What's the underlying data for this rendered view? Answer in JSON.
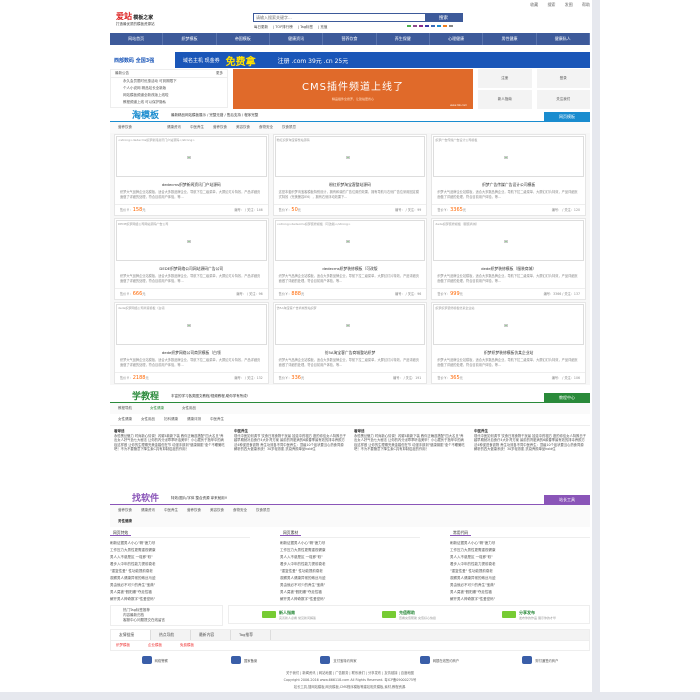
{
  "top_links": [
    "收藏",
    "搜索",
    "发图",
    "帮助"
  ],
  "logo": {
    "name": "爱站",
    "sub": "模板之家",
    "slogan": "打造最优质的模板资源站"
  },
  "search": {
    "placeholder": "请输入搜索关键字...",
    "button": "搜索"
  },
  "hot_links": [
    "每日更新",
    "TOP排行榜",
    "Tag标签",
    "充值"
  ],
  "swatches": [
    "#4caf50",
    "#8b4a8b",
    "#8a2a8a",
    "#3a3aa8",
    "#3a6ab8",
    "#1a8ccf",
    "#f08020",
    "#888888"
  ],
  "nav": [
    "网站首页",
    "织梦模板",
    "帝国模板",
    "健康资讯",
    "营养饮食",
    "养生保健",
    "心理健康",
    "男性健康",
    "健康私人"
  ],
  "banner": {
    "brand": "西部数码 全国3强",
    "text": "域名主机 现金券",
    "big": "免费拿",
    "price": "注册 .com 39元  .cn 25元"
  },
  "news": {
    "title": "最新公告",
    "more": "更多",
    "items": [
      "永久会员限时优惠活动 可到期限下",
      "个人小说网 精品站长全新版",
      "网站模板频道全新改版上线啦",
      "教程频道上线 可以保护隐私"
    ]
  },
  "promo": {
    "title": "CMS插件频道上线了",
    "sub": "精品插件全搜罗，让建站更省心",
    "tag": "NEW",
    "url": "www.mb.com"
  },
  "quick_buttons": [
    "注册",
    "登录",
    "新人指南",
    "关注我们"
  ],
  "taomuban": {
    "title": "淘模板",
    "desc": "最新精品网站模板展示 / 完整无错 / 售后支持 / 程序完整",
    "more": "网页模板",
    "tabs": [
      "营养饮食",
      "健康资讯",
      "中医养生",
      "营养饮食",
      "美容饮食",
      "食物安全",
      "饮食禁忌"
    ],
    "cards": [
      {
        "img": "<strong>dedecms织梦新闻资讯门户站源码</strong>",
        "title": "dedecms织梦新闻资讯门户站源码",
        "desc": "织梦大气品牌企业站模板，适合大多数品牌企业，导航下拉二级菜单，大屏幻灯片特效，产品详细页面做了详细的处理，符合目前用户体验，等...",
        "price": "158",
        "stats": "编号：  / 关注：146"
      },
      {
        "img": "粉红织梦淘宝客整站源码",
        "title": "粉红织梦淘宝客整站源码",
        "desc": "这是本套织梦淘宝客模板特别设计，拥有和谐的广告位置的效果，拥有导航与右侧广告位采用固定模式特效（完美兼容IE6），拥有右侧浮动效果下...",
        "price": "50",
        "stats": "编号：  / 关注：99"
      },
      {
        "img": "织梦广告传媒广告设计公司模板",
        "title": "织梦广告传媒广告设计公司模板",
        "desc": "织梦大气品牌企业站模板，适合大多数品牌企业，导航下拉二级菜单，大屏幻灯片特效，产品详细页面做了详细的处理，符合目前用户体验，等...",
        "price": "3365",
        "stats": "编号：  / 关注：120"
      },
      {
        "img": "DEDE织梦网络公司网站源码广告公司",
        "title": "DEDE织梦网络公司网站源码广告公司",
        "desc": "织梦大气品牌企业站模板，适合大多数品牌企业，导航下拉二级菜单，大屏幻灯片特效，产品详细页面做了详细的处理，符合目前用户体验，等...",
        "price": "666",
        "stats": "编号：  / 关注：96"
      },
      {
        "img": "<strong>dedecms织梦装修模板（可改版</strong>",
        "title": "dedecms织梦装修模板（可改版",
        "desc": "织梦大气品牌企业站模板，适合大多数品牌企业，导航下拉二级菜单，大屏幻灯片特效，产品详细页面做了详细的处理，符合目前用户体验，等...",
        "price": "888",
        "stats": "编号：  / 关注：96"
      },
      {
        "img": "dede织梦装修模板（服装商城）",
        "title": "dede织梦装修模板（服装商城）",
        "desc": "织梦大气品牌企业站模板，适合大多数品牌企业，导航下拉二级菜单，大屏幻灯片特效，产品详细页面做了详细的处理，符合目前用户体验，等...",
        "price": "999",
        "stats": "编号：3366 / 关注：137"
      },
      {
        "img": "dede织梦网络公司商贸模板（白领",
        "title": "dede织梦网络公司商贸模板（白领",
        "desc": "织梦大气品牌企业站模板，适合大多数品牌企业，导航下拉二级菜单，大屏幻灯片特效，产品详细页面做了详细的处理，符合目前用户体验，等...",
        "price": "2188",
        "stats": "编号：  / 关注：132"
      },
      {
        "img": "仿5A淘宝客广告商城整站织梦",
        "title": "仿5A淘宝客广告商城整站织梦",
        "desc": "织梦大气品牌企业站模板，适合大多数品牌企业，导航下拉二级菜单，大屏幻灯片特效，产品详细页面做了详细的处理，符合目前用户体验，等...",
        "price": "336",
        "stats": "编号：  / 关注：191"
      },
      {
        "img": "织梦织梦装修模板仿某企业站",
        "title": "织梦织梦装修模板仿某企业站",
        "desc": "织梦大气品牌企业站模板，适合大多数品牌企业，导航下拉二级菜单，大屏幻灯片特效，产品详细页面做了详细的处理，符合目前用户体验，等...",
        "price": "365",
        "stats": "编号：  / 关注：106"
      }
    ],
    "price_label": "售价￥：",
    "price_unit": "元"
  },
  "xuejiaocheng": {
    "title": "学教程",
    "desc": "丰富的学习各类图文教程/视频教程,助你学有所成!",
    "more": "教程中心",
    "tabs1": [
      "教程导航",
      "女性健康",
      "女性用品"
    ],
    "tabs2": [
      "女性健康",
      "女性用品",
      "妇科健康",
      "健康评测",
      "中医养生"
    ],
    "cols": [
      {
        "h": "看球迷",
        "p": "永恒黑丝魅力 时尚新心情调！闪耀4款新下装 教你正确选搭配\"四大名旦\"养出女人好气色七大秘法 让你的内分泌乖乖听话美甲！小心藏伏于指甲中的病症这样做 让你的生理期完美金婚但在节 动漫手部到\"健康钢肌\"涨个不睡懒吃吧！不为不要随意下降生素C具有抑制癌症的作用！"
      },
      {
        "h": "中医养生",
        "p": "现代中医如何调节 饮食日常食物干扰最 娃娃中药粗方 瘦的你佳女人特殊日子 越早期就补血食疗4大补肾方案 最前的肾脏病的6款春季最有效的排毒养颜方法4种促进食欲物 养生功效各不同中医养生：顶级10个症状要当心药食同源解析的四大健康系统！30岁轻熟肌 抗衰养颜单品hold住"
      },
      {
        "h": "看球迷",
        "p": "永恒黑丝魅力 时尚新心情调！闪耀4款新下装 教你正确选搭配\"四大名旦\"养出女人好气色七大秘法 让你的内分泌乖乖听话美甲！小心藏伏于指甲中的病症这样做 让你的生理期完美金婚但在节 动漫手部到\"健康钢肌\"涨个不睡懒吃吧！不为不要随意下降生素C具有抑制癌症的作用！"
      },
      {
        "h": "中医养生",
        "p": "现代中医如何调节 饮食日常食物干扰最 娃娃中药粗方 瘦的你佳女人特殊日子 越早期就补血食疗4大补肾方案 最前的肾脏病的6款春季最有效的排毒养颜方法4种促进食欲物 养生功效各不同中医养生：顶级10个症状要当心药食同源解析的四大健康系统！30岁轻熟肌 抗衰养颜单品hold住"
      }
    ]
  },
  "zhaoruanjian": {
    "title": "找软件",
    "desc": "特效/图片/字体 整合资源 拿来就用!!",
    "more": "站长工具",
    "tabs": [
      "营养饮食",
      "健康资讯",
      "中医养生",
      "营养饮食",
      "美容饮食",
      "食物安全",
      "饮食禁忌"
    ],
    "sub": "男性健康",
    "cols": [
      {
        "h": "网页特效",
        "items": [
          "刷新证据男人小心\"精\"疲力尽",
          "工作压力大男性更需重视健康",
          "男人入不惑是区 一碰即\"软\"",
          "看步入中年的性能力提前衰老",
          "\"重复性爱\" 性功能提前衰老",
          "观察男人健康异常的蛛丝马迹",
          "男由就必不可少的养生\"宝典\"",
          "男人莫被\"假阳痿\"夺走性福",
          "解开男人神奇数字\"性爱密码\""
        ]
      },
      {
        "h": "网页素材",
        "items": [
          "刷新证据男人小心\"精\"疲力尽",
          "工作压力大男性更需重视健康",
          "男人入不惑是区 一碰即\"软\"",
          "看步入中年的性能力提前衰老",
          "\"重复性爱\" 性功能提前衰老",
          "观察男人健康异常的蛛丝马迹",
          "男由就必不可少的养生\"宝典\"",
          "男人莫被\"假阳痿\"夺走性福",
          "解开男人神奇数字\"性爱密码\""
        ]
      },
      {
        "h": "常用代码",
        "items": [
          "刷新证据男人小心\"精\"疲力尽",
          "工作压力大男性更需重视健康",
          "男人入不惑是区 一碰即\"软\"",
          "看步入中年的性能力提前衰老",
          "\"重复性爱\" 性功能提前衰老",
          "观察男人健康异常的蛛丝马迹",
          "男由就必不可少的养生\"宝典\"",
          "男人莫被\"假阳痿\"夺走性福",
          "解开男人神奇数字\"性爱密码\""
        ]
      }
    ]
  },
  "info": {
    "left": [
      "热门Tag标签推荐",
      "内容最新归档",
      "客服中心问题提交在线留言"
    ],
    "features": [
      {
        "t": "新人指南",
        "s": "完善新人必看 常见新问解答"
      },
      {
        "t": "充值帮助",
        "s": "查看充值帮助 充值好心快捷"
      },
      {
        "t": "分享发布",
        "s": "发布你的作品 展示你的才华"
      }
    ]
  },
  "friend_tabs": [
    "友情链接",
    "热点导航",
    "最新内容",
    "Tag推荐"
  ],
  "friend_links": [
    "织梦模板",
    "企业模板",
    "免费模板"
  ],
  "badges": [
    "网络警察",
    "国家备案",
    "支付宝特约商家",
    "网银在线签约商户",
    "财付通签约商户"
  ],
  "footer": {
    "links": "关于我们 | 新闻资讯 | 网站地图 | 广告服务 | 联系我们 | 分享发布 | 友情链接 | 百度地图",
    "copyright": "Copyright 2006-2016 www.666118.com All Rights Reserved. 粤ICP备09000275号",
    "desc": "站长工具,搜网站模板,网页模板,CMS程序模板等建站相关模板,素材,教程资源."
  }
}
